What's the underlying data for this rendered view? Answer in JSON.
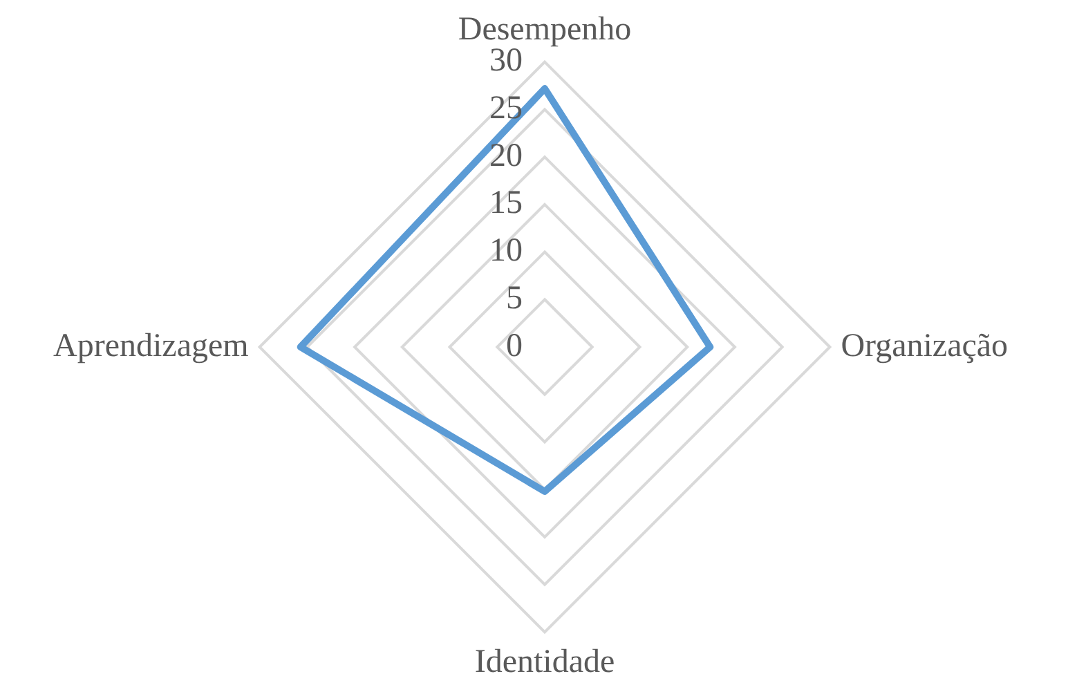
{
  "chart_data": {
    "type": "radar",
    "categories": [
      "Desempenho",
      "Organização",
      "Identidade",
      "Aprendizagem"
    ],
    "series": [
      {
        "color": "#5b9bd5",
        "values": [
          27.2,
          17.4,
          15.2,
          25.7
        ]
      }
    ],
    "ylim": [
      0,
      30
    ],
    "yticks": [
      0,
      5,
      10,
      15,
      20,
      25,
      30
    ],
    "grid": true,
    "marker": "none"
  }
}
